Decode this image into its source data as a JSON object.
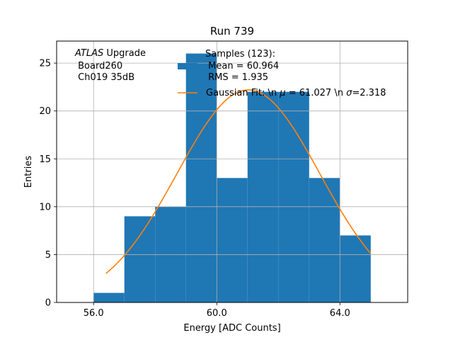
{
  "chart_data": {
    "type": "bar",
    "title": "Run 739",
    "xlabel": "Energy [ADC Counts]",
    "ylabel": "Entries",
    "xlim": [
      54.8,
      66.2
    ],
    "ylim": [
      0,
      27.3
    ],
    "grid": true,
    "x_ticks": [
      56,
      60,
      64
    ],
    "x_tick_labels": [
      "56.0",
      "60.0",
      "64.0"
    ],
    "y_ticks": [
      0,
      5,
      10,
      15,
      20,
      25
    ],
    "y_tick_labels": [
      "0",
      "5",
      "10",
      "15",
      "20",
      "25"
    ],
    "bin_edges": [
      56,
      57,
      58,
      59,
      60,
      61,
      62,
      63,
      64,
      65
    ],
    "values": [
      1,
      9,
      10,
      26,
      13,
      22,
      22,
      13,
      7
    ],
    "bar_color": "#1f77b4",
    "fit": {
      "mu": 61.027,
      "sigma": 2.318,
      "amplitude": 22.2,
      "x_range": [
        56.4,
        65.0
      ],
      "color": "#ff7f0e"
    },
    "annotation": {
      "lines": [
        "ATLAS Upgrade",
        " Board260",
        " Ch019 35dB"
      ],
      "italic_word": "ATLAS",
      "rest_of_first_line": " Upgrade"
    },
    "legend": {
      "position": "top-right",
      "entries": [
        {
          "label_lines": [
            "Samples (123):",
            " Mean = 60.964",
            " RMS = 1.935"
          ],
          "kind": "patch",
          "color": "#1f77b4"
        },
        {
          "label_parts": [
            "Gaussian Fit: \\n ",
            "μ",
            " = 61.027 \\n ",
            "σ",
            "=2.318"
          ],
          "kind": "line",
          "color": "#ff7f0e"
        }
      ]
    }
  }
}
